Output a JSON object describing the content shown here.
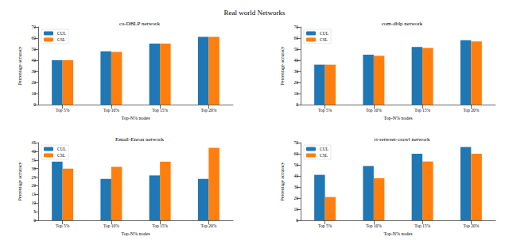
{
  "title": "Real world Networks",
  "chart_data": [
    {
      "type": "bar",
      "title": "ca-DBLP network",
      "x_label": "Top-N% nodes",
      "y_label": "Percentage accuracy",
      "categories": [
        "Top 5%",
        "Top 10%",
        "Top 15%",
        "Top 20%"
      ],
      "series": [
        {
          "name": "CUL",
          "color": "#1f77b4",
          "values": [
            40,
            48,
            55,
            61
          ]
        },
        {
          "name": "CSL",
          "color": "#ff7f0e",
          "values": [
            40,
            47.5,
            55,
            61
          ]
        }
      ],
      "ylim": [
        0,
        70
      ],
      "yticks": [
        0,
        10,
        20,
        30,
        40,
        50,
        60,
        70
      ],
      "legend": "upper left"
    },
    {
      "type": "bar",
      "title": "com-dblp network",
      "x_label": "Top-N% nodes",
      "y_label": "Percentage accuracy",
      "categories": [
        "Top 5%",
        "Top 10%",
        "Top 15%",
        "Top 20%"
      ],
      "series": [
        {
          "name": "CUL",
          "color": "#1f77b4",
          "values": [
            36,
            45,
            52,
            58
          ]
        },
        {
          "name": "CSL",
          "color": "#ff7f0e",
          "values": [
            36,
            44,
            51,
            57
          ]
        }
      ],
      "ylim": [
        0,
        70
      ],
      "yticks": [
        0,
        10,
        20,
        30,
        40,
        50,
        60,
        70
      ],
      "legend": "upper left"
    },
    {
      "type": "bar",
      "title": "Email-Enron network",
      "x_label": "Top-N% nodes",
      "y_label": "Percentage accuracy",
      "categories": [
        "Top 5%",
        "Top 10%",
        "Top 15%",
        "Top 20%"
      ],
      "series": [
        {
          "name": "CUL",
          "color": "#1f77b4",
          "values": [
            34,
            24,
            26,
            24
          ]
        },
        {
          "name": "CSL",
          "color": "#ff7f0e",
          "values": [
            30,
            31,
            34,
            42
          ]
        }
      ],
      "ylim": [
        0,
        45
      ],
      "yticks": [
        0,
        5,
        10,
        15,
        20,
        25,
        30,
        35,
        40,
        45
      ],
      "legend": "upper left"
    },
    {
      "type": "bar",
      "title": "rt-retweet-crawl network",
      "x_label": "Top-N% nodes",
      "y_label": "Percentage accuracy",
      "categories": [
        "Top 5%",
        "Top 10%",
        "Top 15%",
        "Top 20%"
      ],
      "series": [
        {
          "name": "CUL",
          "color": "#1f77b4",
          "values": [
            41,
            49,
            60,
            66
          ]
        },
        {
          "name": "CSL",
          "color": "#ff7f0e",
          "values": [
            21,
            38,
            53,
            60
          ]
        }
      ],
      "ylim": [
        0,
        70
      ],
      "yticks": [
        0,
        10,
        20,
        30,
        40,
        50,
        60,
        70
      ],
      "legend": "upper left"
    }
  ]
}
